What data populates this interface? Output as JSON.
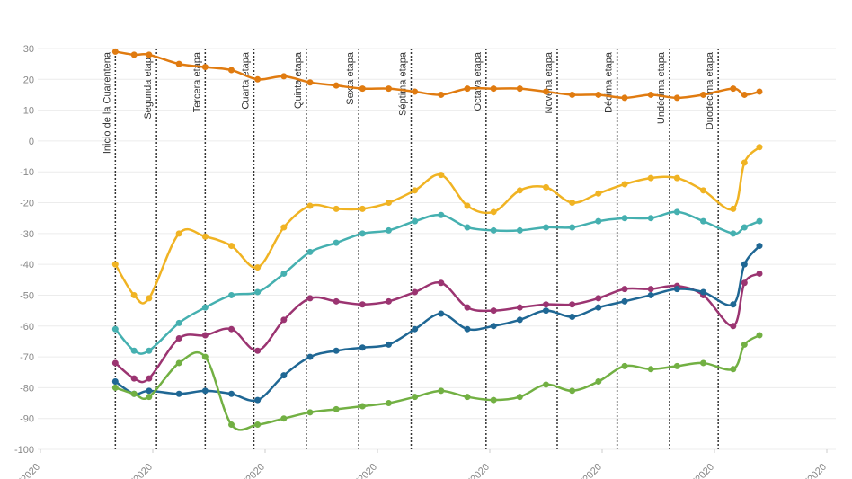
{
  "chart_data": {
    "type": "line",
    "x": [
      20,
      25,
      29,
      37,
      44,
      51,
      58,
      65,
      72,
      79,
      86,
      93,
      100,
      107,
      114,
      121,
      128,
      135,
      142,
      149,
      156,
      163,
      170,
      177,
      185,
      188,
      192
    ],
    "series": [
      {
        "color": "#e07b10",
        "values": [
          29,
          28,
          28,
          25,
          24,
          23,
          20,
          21,
          19,
          18,
          17,
          17,
          16,
          15,
          17,
          17,
          17,
          16,
          15,
          15,
          14,
          15,
          14,
          15,
          17,
          15,
          16
        ]
      },
      {
        "color": "#f0b323",
        "values": [
          -40,
          -50,
          -51,
          -30,
          -31,
          -34,
          -41,
          -28,
          -21,
          -22,
          -22,
          -20,
          -16,
          -11,
          -21,
          -23,
          -16,
          -15,
          -20,
          -17,
          -14,
          -12,
          -12,
          -16,
          -22,
          -7,
          -2
        ]
      },
      {
        "color": "#45b0b0",
        "values": [
          -61,
          -68,
          -68,
          -59,
          -54,
          -50,
          -49,
          -43,
          -36,
          -33,
          -30,
          -29,
          -26,
          -24,
          -28,
          -29,
          -29,
          -28,
          -28,
          -26,
          -25,
          -25,
          -23,
          -26,
          -30,
          -28,
          -26
        ]
      },
      {
        "color": "#9b3471",
        "values": [
          -72,
          -77,
          -77,
          -64,
          -63,
          -61,
          -68,
          -58,
          -51,
          -52,
          -53,
          -52,
          -49,
          -46,
          -54,
          -55,
          -54,
          -53,
          -53,
          -51,
          -48,
          -48,
          -47,
          -50,
          -60,
          -46,
          -43
        ]
      },
      {
        "color": "#1f6794",
        "values": [
          -78,
          -82,
          -81,
          -82,
          -81,
          -82,
          -84,
          -76,
          -70,
          -68,
          -67,
          -66,
          -61,
          -56,
          -61,
          -60,
          -58,
          -55,
          -57,
          -54,
          -52,
          -50,
          -48,
          -49,
          -53,
          -40,
          -34
        ]
      },
      {
        "color": "#72b043",
        "values": [
          -80,
          -82,
          -83,
          -72,
          -70,
          -92,
          -92,
          -90,
          -88,
          -87,
          -86,
          -85,
          -83,
          -81,
          -83,
          -84,
          -83,
          -79,
          -81,
          -78,
          -73,
          -74,
          -73,
          -72,
          -74,
          -66,
          -63
        ]
      }
    ],
    "annotations": [
      {
        "label": "Inicio de la Cuarentena",
        "x": 20
      },
      {
        "label": "Segunda etapa",
        "x": 31
      },
      {
        "label": "Tercera etapa",
        "x": 44
      },
      {
        "label": "Cuarta etapa",
        "x": 57
      },
      {
        "label": "Quinta etapa",
        "x": 71
      },
      {
        "label": "Sexta etapa",
        "x": 85
      },
      {
        "label": "Séptima etapa",
        "x": 99
      },
      {
        "label": "Octava etapa",
        "x": 119
      },
      {
        "label": "Novena etapa",
        "x": 138
      },
      {
        "label": "Décima etapa",
        "x": 154
      },
      {
        "label": "Undécima etapa",
        "x": 168
      },
      {
        "label": "Duodécima etapa",
        "x": 181
      }
    ],
    "xlim": [
      0,
      210
    ],
    "xticks": [
      {
        "value": 0,
        "label": "/2020"
      },
      {
        "value": 30,
        "label": "/2020"
      },
      {
        "value": 60,
        "label": "/2020"
      },
      {
        "value": 90,
        "label": "/2020"
      },
      {
        "value": 120,
        "label": "/2020"
      },
      {
        "value": 150,
        "label": "/2020"
      },
      {
        "value": 180,
        "label": "/2020"
      },
      {
        "value": 210,
        "label": "/2020"
      }
    ],
    "ylim": [
      -100,
      30
    ],
    "yticks": [
      -100,
      -90,
      -80,
      -70,
      -60,
      -50,
      -40,
      -30,
      -20,
      -10,
      0,
      10,
      20,
      30
    ],
    "grid": true
  }
}
